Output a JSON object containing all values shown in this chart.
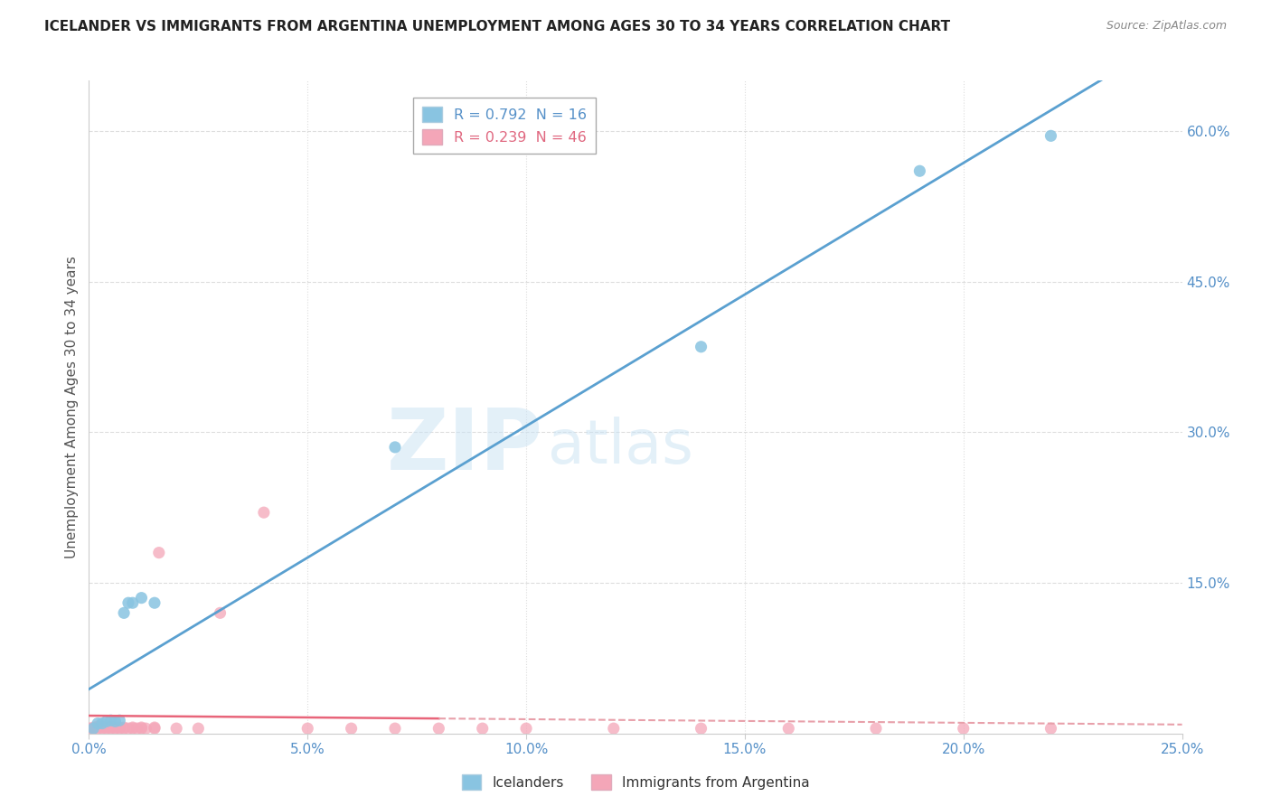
{
  "title": "ICELANDER VS IMMIGRANTS FROM ARGENTINA UNEMPLOYMENT AMONG AGES 30 TO 34 YEARS CORRELATION CHART",
  "source": "Source: ZipAtlas.com",
  "ylabel": "Unemployment Among Ages 30 to 34 years",
  "xlim": [
    0.0,
    0.25
  ],
  "ylim": [
    0.0,
    0.65
  ],
  "yticks_right": [
    0.15,
    0.3,
    0.45,
    0.6
  ],
  "xticks": [
    0.0,
    0.05,
    0.1,
    0.15,
    0.2,
    0.25
  ],
  "icelanders_x": [
    0.001,
    0.002,
    0.003,
    0.004,
    0.005,
    0.006,
    0.007,
    0.008,
    0.009,
    0.01,
    0.012,
    0.015,
    0.07,
    0.14,
    0.19,
    0.22
  ],
  "icelanders_y": [
    0.005,
    0.01,
    0.01,
    0.012,
    0.013,
    0.012,
    0.013,
    0.12,
    0.13,
    0.13,
    0.135,
    0.13,
    0.285,
    0.385,
    0.56,
    0.595
  ],
  "argentina_x": [
    0.0,
    0.001,
    0.001,
    0.002,
    0.002,
    0.002,
    0.003,
    0.003,
    0.003,
    0.004,
    0.004,
    0.005,
    0.005,
    0.005,
    0.006,
    0.006,
    0.007,
    0.007,
    0.008,
    0.008,
    0.009,
    0.01,
    0.01,
    0.011,
    0.012,
    0.012,
    0.013,
    0.015,
    0.015,
    0.016,
    0.02,
    0.025,
    0.03,
    0.04,
    0.05,
    0.06,
    0.07,
    0.08,
    0.09,
    0.1,
    0.12,
    0.14,
    0.16,
    0.18,
    0.2,
    0.22
  ],
  "argentina_y": [
    0.005,
    0.005,
    0.006,
    0.005,
    0.006,
    0.007,
    0.005,
    0.006,
    0.007,
    0.005,
    0.006,
    0.005,
    0.006,
    0.007,
    0.005,
    0.006,
    0.005,
    0.006,
    0.005,
    0.006,
    0.005,
    0.005,
    0.006,
    0.005,
    0.005,
    0.006,
    0.005,
    0.005,
    0.006,
    0.18,
    0.005,
    0.005,
    0.12,
    0.22,
    0.005,
    0.005,
    0.005,
    0.005,
    0.005,
    0.005,
    0.005,
    0.005,
    0.005,
    0.005,
    0.005,
    0.005
  ],
  "blue_color": "#89c4e1",
  "pink_color": "#f4a6b8",
  "blue_line_color": "#5aa0d0",
  "pink_line_color": "#e8657a",
  "pink_dashed_color": "#e8a0aa",
  "R_blue": 0.792,
  "N_blue": 16,
  "R_pink": 0.239,
  "N_pink": 46,
  "watermark_zip": "ZIP",
  "watermark_atlas": "atlas",
  "background_color": "#ffffff",
  "grid_color": "#dddddd",
  "pink_solid_xlim": [
    0.0,
    0.08
  ],
  "pink_dashed_xlim": [
    0.08,
    0.25
  ]
}
